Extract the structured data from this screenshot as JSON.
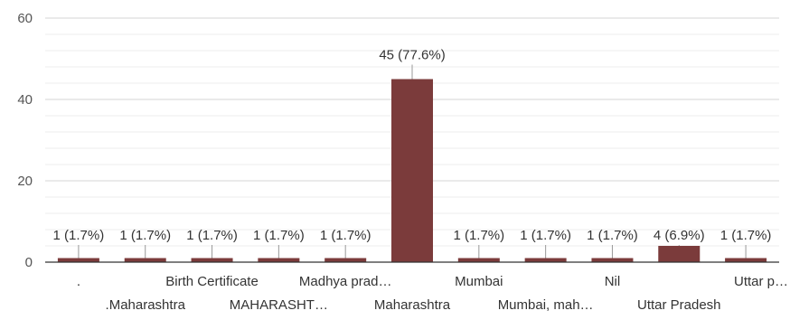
{
  "chart_data": {
    "type": "bar",
    "categories": [
      ".",
      ".Maharashtra",
      "Birth Certificate",
      "MAHARASHT…",
      "Madhya prad…",
      "Maharashtra",
      "Mumbai",
      "Mumbai, mah…",
      "Nil",
      "Uttar Pradesh",
      "Uttar p…"
    ],
    "values": [
      1,
      1,
      1,
      1,
      1,
      45,
      1,
      1,
      1,
      4,
      1
    ],
    "data_labels": [
      "1 (1.7%)",
      "1 (1.7%)",
      "1 (1.7%)",
      "1 (1.7%)",
      "1 (1.7%)",
      "45 (77.6%)",
      "1 (1.7%)",
      "1 (1.7%)",
      "1 (1.7%)",
      "4 (6.9%)",
      "1 (1.7%)"
    ],
    "yticks": [
      0,
      20,
      40,
      60
    ],
    "ylim": [
      0,
      60
    ],
    "grid": true,
    "bar_color": "#7b3b3b",
    "title": "",
    "xlabel": "",
    "ylabel": ""
  }
}
